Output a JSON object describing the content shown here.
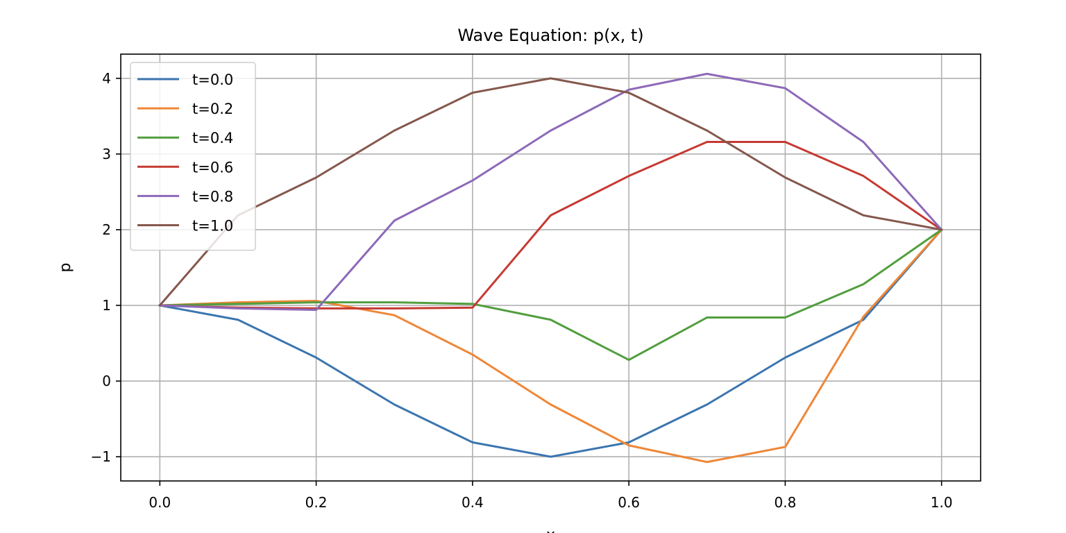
{
  "chart_data": {
    "type": "line",
    "title": "Wave Equation: p(x, t)",
    "xlabel": "x",
    "ylabel": "p",
    "xlim": [
      -0.05,
      1.05
    ],
    "ylim": [
      -1.32,
      4.32
    ],
    "xticks": [
      0.0,
      0.2,
      0.4,
      0.6,
      0.8,
      1.0
    ],
    "xtick_labels": [
      "0.0",
      "0.2",
      "0.4",
      "0.6",
      "0.8",
      "1.0"
    ],
    "yticks": [
      -1,
      0,
      1,
      2,
      3,
      4
    ],
    "ytick_labels": [
      "−1",
      "0",
      "1",
      "2",
      "3",
      "4"
    ],
    "grid": true,
    "legend_position": "upper-left",
    "x": [
      0.0,
      0.1,
      0.2,
      0.3,
      0.4,
      0.5,
      0.6,
      0.7,
      0.8,
      0.9,
      1.0
    ],
    "series": [
      {
        "name": "t=0.0",
        "color": "#3b75af",
        "values": [
          1.0,
          0.81,
          0.31,
          -0.31,
          -0.81,
          -1.0,
          -0.81,
          -0.31,
          0.31,
          0.81,
          2.0
        ]
      },
      {
        "name": "t=0.2",
        "color": "#ef8636",
        "values": [
          1.0,
          1.04,
          1.06,
          0.87,
          0.35,
          -0.31,
          -0.85,
          -1.07,
          -0.87,
          0.85,
          2.0
        ]
      },
      {
        "name": "t=0.4",
        "color": "#519e3e",
        "values": [
          1.0,
          1.02,
          1.04,
          1.04,
          1.02,
          0.81,
          0.28,
          0.84,
          0.84,
          1.28,
          2.0
        ]
      },
      {
        "name": "t=0.6",
        "color": "#c53a32",
        "values": [
          1.0,
          0.97,
          0.96,
          0.96,
          0.97,
          2.19,
          2.71,
          3.16,
          3.16,
          2.71,
          2.0
        ]
      },
      {
        "name": "t=0.8",
        "color": "#8d69b8",
        "values": [
          1.0,
          0.96,
          0.94,
          2.12,
          2.65,
          3.31,
          3.85,
          4.06,
          3.87,
          3.16,
          2.0
        ]
      },
      {
        "name": "t=1.0",
        "color": "#85584d",
        "values": [
          1.0,
          2.19,
          2.69,
          3.31,
          3.81,
          4.0,
          3.81,
          3.31,
          2.69,
          2.19,
          2.0
        ]
      }
    ]
  }
}
